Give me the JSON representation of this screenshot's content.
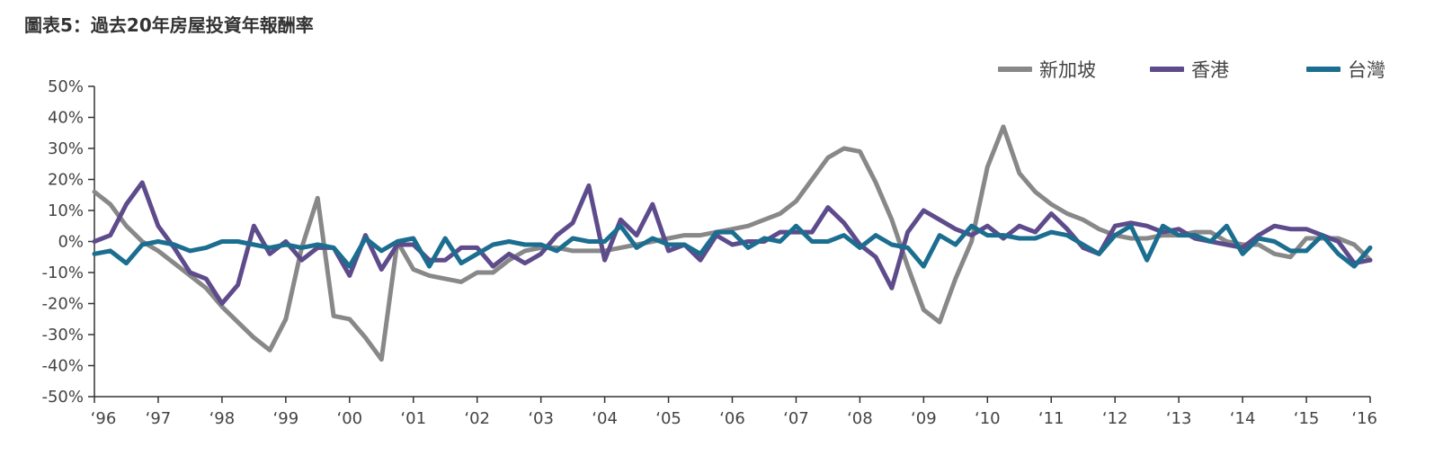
{
  "title": "圖表5：過去20年房屋投資年報酬率",
  "chart_data": {
    "type": "line",
    "title": "圖表5：過去20年房屋投資年報酬率",
    "xlabel": "",
    "ylabel": "",
    "ylim": [
      -0.5,
      0.5
    ],
    "xlim": [
      1996,
      2016
    ],
    "y_ticks": [
      {
        "v": 0.5,
        "label": "50%"
      },
      {
        "v": 0.4,
        "label": "40%"
      },
      {
        "v": 0.3,
        "label": "30%"
      },
      {
        "v": 0.2,
        "label": "20%"
      },
      {
        "v": 0.1,
        "label": "10%"
      },
      {
        "v": 0.0,
        "label": "0%"
      },
      {
        "v": -0.1,
        "label": "-10%"
      },
      {
        "v": -0.2,
        "label": "-20%"
      },
      {
        "v": -0.3,
        "label": "-30%"
      },
      {
        "v": -0.4,
        "label": "-40%"
      },
      {
        "v": -0.5,
        "label": "-50%"
      }
    ],
    "x_ticks": [
      {
        "v": 1996,
        "label": "‘96"
      },
      {
        "v": 1997,
        "label": "‘97"
      },
      {
        "v": 1998,
        "label": "‘98"
      },
      {
        "v": 1999,
        "label": "‘99"
      },
      {
        "v": 2000,
        "label": "‘00"
      },
      {
        "v": 2001,
        "label": "‘01"
      },
      {
        "v": 2002,
        "label": "‘02"
      },
      {
        "v": 2003,
        "label": "‘03"
      },
      {
        "v": 2004,
        "label": "‘04"
      },
      {
        "v": 2005,
        "label": "‘05"
      },
      {
        "v": 2006,
        "label": "‘06"
      },
      {
        "v": 2007,
        "label": "‘07"
      },
      {
        "v": 2008,
        "label": "‘08"
      },
      {
        "v": 2009,
        "label": "‘09"
      },
      {
        "v": 2010,
        "label": "‘10"
      },
      {
        "v": 2011,
        "label": "‘11"
      },
      {
        "v": 2012,
        "label": "‘12"
      },
      {
        "v": 2013,
        "label": "‘13"
      },
      {
        "v": 2014,
        "label": "‘14"
      },
      {
        "v": 2015,
        "label": "‘15"
      },
      {
        "v": 2016,
        "label": "‘16"
      }
    ],
    "legend_position": "top-right",
    "series": [
      {
        "name": "新加坡",
        "color": "#888888",
        "points": [
          [
            1996.0,
            0.16
          ],
          [
            1996.25,
            0.12
          ],
          [
            1996.5,
            0.05
          ],
          [
            1996.75,
            0.0
          ],
          [
            1997.0,
            -0.03
          ],
          [
            1997.25,
            -0.07
          ],
          [
            1997.5,
            -0.11
          ],
          [
            1997.75,
            -0.15
          ],
          [
            1998.0,
            -0.21
          ],
          [
            1998.25,
            -0.26
          ],
          [
            1998.5,
            -0.31
          ],
          [
            1998.75,
            -0.35
          ],
          [
            1999.0,
            -0.25
          ],
          [
            1999.25,
            -0.02
          ],
          [
            1999.5,
            0.14
          ],
          [
            1999.75,
            -0.24
          ],
          [
            2000.0,
            -0.25
          ],
          [
            2000.25,
            -0.31
          ],
          [
            2000.5,
            -0.38
          ],
          [
            2000.75,
            0.0
          ],
          [
            2001.0,
            -0.09
          ],
          [
            2001.25,
            -0.11
          ],
          [
            2001.5,
            -0.12
          ],
          [
            2001.75,
            -0.13
          ],
          [
            2002.0,
            -0.1
          ],
          [
            2002.25,
            -0.1
          ],
          [
            2002.5,
            -0.06
          ],
          [
            2002.75,
            -0.03
          ],
          [
            2003.0,
            -0.02
          ],
          [
            2003.25,
            -0.02
          ],
          [
            2003.5,
            -0.03
          ],
          [
            2003.75,
            -0.03
          ],
          [
            2004.0,
            -0.03
          ],
          [
            2004.25,
            -0.02
          ],
          [
            2004.5,
            -0.01
          ],
          [
            2004.75,
            0.0
          ],
          [
            2005.0,
            0.01
          ],
          [
            2005.25,
            0.02
          ],
          [
            2005.5,
            0.02
          ],
          [
            2005.75,
            0.03
          ],
          [
            2006.0,
            0.04
          ],
          [
            2006.25,
            0.05
          ],
          [
            2006.5,
            0.07
          ],
          [
            2006.75,
            0.09
          ],
          [
            2007.0,
            0.13
          ],
          [
            2007.25,
            0.2
          ],
          [
            2007.5,
            0.27
          ],
          [
            2007.75,
            0.3
          ],
          [
            2008.0,
            0.29
          ],
          [
            2008.25,
            0.19
          ],
          [
            2008.5,
            0.07
          ],
          [
            2008.75,
            -0.08
          ],
          [
            2009.0,
            -0.22
          ],
          [
            2009.25,
            -0.26
          ],
          [
            2009.5,
            -0.12
          ],
          [
            2009.75,
            0.0
          ],
          [
            2010.0,
            0.24
          ],
          [
            2010.25,
            0.37
          ],
          [
            2010.5,
            0.22
          ],
          [
            2010.75,
            0.16
          ],
          [
            2011.0,
            0.12
          ],
          [
            2011.25,
            0.09
          ],
          [
            2011.5,
            0.07
          ],
          [
            2011.75,
            0.04
          ],
          [
            2012.0,
            0.02
          ],
          [
            2012.25,
            0.01
          ],
          [
            2012.5,
            0.01
          ],
          [
            2012.75,
            0.02
          ],
          [
            2013.0,
            0.02
          ],
          [
            2013.25,
            0.03
          ],
          [
            2013.5,
            0.03
          ],
          [
            2013.75,
            0.0
          ],
          [
            2014.0,
            -0.01
          ],
          [
            2014.25,
            -0.01
          ],
          [
            2014.5,
            -0.04
          ],
          [
            2014.75,
            -0.05
          ],
          [
            2015.0,
            0.01
          ],
          [
            2015.25,
            0.01
          ],
          [
            2015.5,
            0.01
          ],
          [
            2015.75,
            -0.01
          ],
          [
            2016.0,
            -0.06
          ]
        ]
      },
      {
        "name": "香港",
        "color": "#5e4b8b",
        "points": [
          [
            1996.0,
            0.0
          ],
          [
            1996.25,
            0.02
          ],
          [
            1996.5,
            0.12
          ],
          [
            1996.75,
            0.19
          ],
          [
            1997.0,
            0.05
          ],
          [
            1997.25,
            -0.02
          ],
          [
            1997.5,
            -0.1
          ],
          [
            1997.75,
            -0.12
          ],
          [
            1998.0,
            -0.2
          ],
          [
            1998.25,
            -0.14
          ],
          [
            1998.5,
            0.05
          ],
          [
            1998.75,
            -0.04
          ],
          [
            1999.0,
            0.0
          ],
          [
            1999.25,
            -0.06
          ],
          [
            1999.5,
            -0.02
          ],
          [
            1999.75,
            -0.02
          ],
          [
            2000.0,
            -0.11
          ],
          [
            2000.25,
            0.02
          ],
          [
            2000.5,
            -0.09
          ],
          [
            2000.75,
            -0.01
          ],
          [
            2001.0,
            -0.01
          ],
          [
            2001.25,
            -0.06
          ],
          [
            2001.5,
            -0.06
          ],
          [
            2001.75,
            -0.02
          ],
          [
            2002.0,
            -0.02
          ],
          [
            2002.25,
            -0.08
          ],
          [
            2002.5,
            -0.04
          ],
          [
            2002.75,
            -0.07
          ],
          [
            2003.0,
            -0.04
          ],
          [
            2003.25,
            0.02
          ],
          [
            2003.5,
            0.06
          ],
          [
            2003.75,
            0.18
          ],
          [
            2004.0,
            -0.06
          ],
          [
            2004.25,
            0.07
          ],
          [
            2004.5,
            0.02
          ],
          [
            2004.75,
            0.12
          ],
          [
            2005.0,
            -0.03
          ],
          [
            2005.25,
            -0.01
          ],
          [
            2005.5,
            -0.06
          ],
          [
            2005.75,
            0.02
          ],
          [
            2006.0,
            -0.01
          ],
          [
            2006.25,
            0.0
          ],
          [
            2006.5,
            0.0
          ],
          [
            2006.75,
            0.03
          ],
          [
            2007.0,
            0.03
          ],
          [
            2007.25,
            0.03
          ],
          [
            2007.5,
            0.11
          ],
          [
            2007.75,
            0.06
          ],
          [
            2008.0,
            -0.01
          ],
          [
            2008.25,
            -0.05
          ],
          [
            2008.5,
            -0.15
          ],
          [
            2008.75,
            0.03
          ],
          [
            2009.0,
            0.1
          ],
          [
            2009.25,
            0.07
          ],
          [
            2009.5,
            0.04
          ],
          [
            2009.75,
            0.02
          ],
          [
            2010.0,
            0.05
          ],
          [
            2010.25,
            0.01
          ],
          [
            2010.5,
            0.05
          ],
          [
            2010.75,
            0.03
          ],
          [
            2011.0,
            0.09
          ],
          [
            2011.25,
            0.04
          ],
          [
            2011.5,
            -0.02
          ],
          [
            2011.75,
            -0.04
          ],
          [
            2012.0,
            0.05
          ],
          [
            2012.25,
            0.06
          ],
          [
            2012.5,
            0.05
          ],
          [
            2012.75,
            0.03
          ],
          [
            2013.0,
            0.04
          ],
          [
            2013.25,
            0.01
          ],
          [
            2013.5,
            0.0
          ],
          [
            2013.75,
            -0.01
          ],
          [
            2014.0,
            -0.02
          ],
          [
            2014.25,
            0.02
          ],
          [
            2014.5,
            0.05
          ],
          [
            2014.75,
            0.04
          ],
          [
            2015.0,
            0.04
          ],
          [
            2015.25,
            0.02
          ],
          [
            2015.5,
            0.0
          ],
          [
            2015.75,
            -0.07
          ],
          [
            2016.0,
            -0.06
          ]
        ]
      },
      {
        "name": "台灣",
        "color": "#1b6e8f",
        "points": [
          [
            1996.0,
            -0.04
          ],
          [
            1996.25,
            -0.03
          ],
          [
            1996.5,
            -0.07
          ],
          [
            1996.75,
            -0.01
          ],
          [
            1997.0,
            0.0
          ],
          [
            1997.25,
            -0.01
          ],
          [
            1997.5,
            -0.03
          ],
          [
            1997.75,
            -0.02
          ],
          [
            1998.0,
            0.0
          ],
          [
            1998.25,
            0.0
          ],
          [
            1998.5,
            -0.01
          ],
          [
            1998.75,
            -0.02
          ],
          [
            1999.0,
            -0.01
          ],
          [
            1999.25,
            -0.02
          ],
          [
            1999.5,
            -0.01
          ],
          [
            1999.75,
            -0.02
          ],
          [
            2000.0,
            -0.08
          ],
          [
            2000.25,
            0.01
          ],
          [
            2000.5,
            -0.03
          ],
          [
            2000.75,
            0.0
          ],
          [
            2001.0,
            0.01
          ],
          [
            2001.25,
            -0.08
          ],
          [
            2001.5,
            0.01
          ],
          [
            2001.75,
            -0.07
          ],
          [
            2002.0,
            -0.04
          ],
          [
            2002.25,
            -0.01
          ],
          [
            2002.5,
            0.0
          ],
          [
            2002.75,
            -0.01
          ],
          [
            2003.0,
            -0.01
          ],
          [
            2003.25,
            -0.03
          ],
          [
            2003.5,
            0.01
          ],
          [
            2003.75,
            0.0
          ],
          [
            2004.0,
            0.0
          ],
          [
            2004.25,
            0.05
          ],
          [
            2004.5,
            -0.02
          ],
          [
            2004.75,
            0.01
          ],
          [
            2005.0,
            -0.01
          ],
          [
            2005.25,
            -0.01
          ],
          [
            2005.5,
            -0.04
          ],
          [
            2005.75,
            0.03
          ],
          [
            2006.0,
            0.03
          ],
          [
            2006.25,
            -0.02
          ],
          [
            2006.5,
            0.01
          ],
          [
            2006.75,
            0.0
          ],
          [
            2007.0,
            0.05
          ],
          [
            2007.25,
            0.0
          ],
          [
            2007.5,
            0.0
          ],
          [
            2007.75,
            0.02
          ],
          [
            2008.0,
            -0.02
          ],
          [
            2008.25,
            0.02
          ],
          [
            2008.5,
            -0.01
          ],
          [
            2008.75,
            -0.02
          ],
          [
            2009.0,
            -0.08
          ],
          [
            2009.25,
            0.02
          ],
          [
            2009.5,
            -0.01
          ],
          [
            2009.75,
            0.05
          ],
          [
            2010.0,
            0.02
          ],
          [
            2010.25,
            0.02
          ],
          [
            2010.5,
            0.01
          ],
          [
            2010.75,
            0.01
          ],
          [
            2011.0,
            0.03
          ],
          [
            2011.25,
            0.02
          ],
          [
            2011.5,
            -0.01
          ],
          [
            2011.75,
            -0.04
          ],
          [
            2012.0,
            0.02
          ],
          [
            2012.25,
            0.05
          ],
          [
            2012.5,
            -0.06
          ],
          [
            2012.75,
            0.05
          ],
          [
            2013.0,
            0.02
          ],
          [
            2013.25,
            0.02
          ],
          [
            2013.5,
            0.0
          ],
          [
            2013.75,
            0.05
          ],
          [
            2014.0,
            -0.04
          ],
          [
            2014.25,
            0.01
          ],
          [
            2014.5,
            0.0
          ],
          [
            2014.75,
            -0.03
          ],
          [
            2015.0,
            -0.03
          ],
          [
            2015.25,
            0.02
          ],
          [
            2015.5,
            -0.04
          ],
          [
            2015.75,
            -0.08
          ],
          [
            2016.0,
            -0.02
          ]
        ]
      }
    ]
  }
}
